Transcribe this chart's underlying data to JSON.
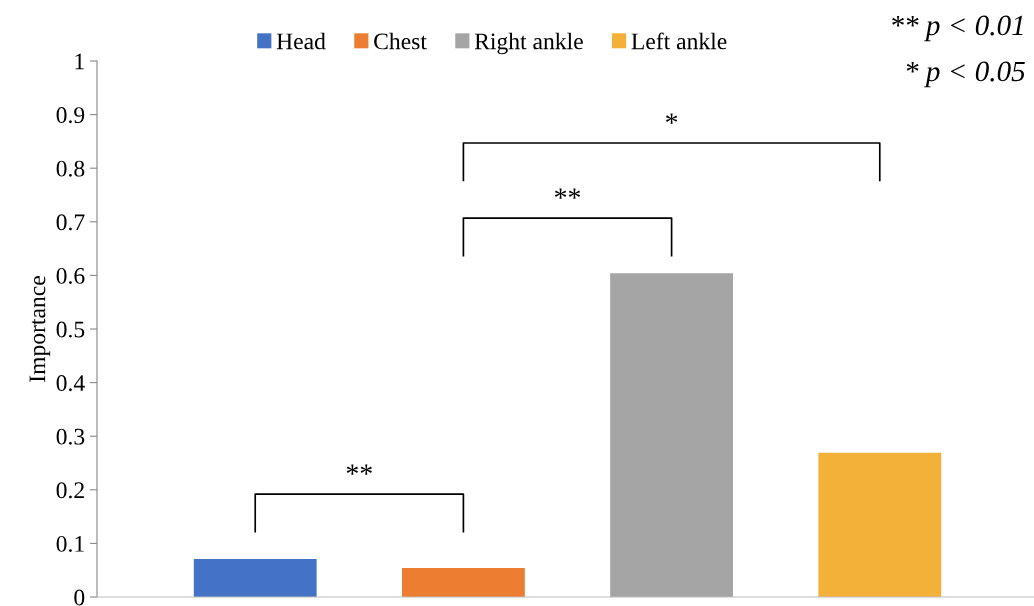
{
  "chart_data": {
    "type": "bar",
    "ylabel": "Importance",
    "categories": [
      null,
      null,
      null,
      null
    ],
    "series": [
      {
        "name": "Head",
        "color": "#4472c4",
        "values": [
          0.071,
          null,
          null,
          null
        ]
      },
      {
        "name": "Chest",
        "color": "#ed7d31",
        "values": [
          null,
          0.054,
          null,
          null
        ]
      },
      {
        "name": "Right ankle",
        "color": "#a5a5a5",
        "values": [
          null,
          null,
          0.604,
          null
        ]
      },
      {
        "name": "Left ankle",
        "color": "#f4b13a",
        "values": [
          null,
          null,
          null,
          0.269
        ]
      }
    ],
    "ylim": [
      0,
      1
    ],
    "yticks": [
      0,
      0.1,
      0.2,
      0.3,
      0.4,
      0.5,
      0.6,
      0.7,
      0.8,
      0.9,
      1
    ],
    "grid": false,
    "legend": "top",
    "annotations": [
      "**",
      "**",
      "*",
      "** p < 0.01",
      "* p < 0.05"
    ]
  }
}
